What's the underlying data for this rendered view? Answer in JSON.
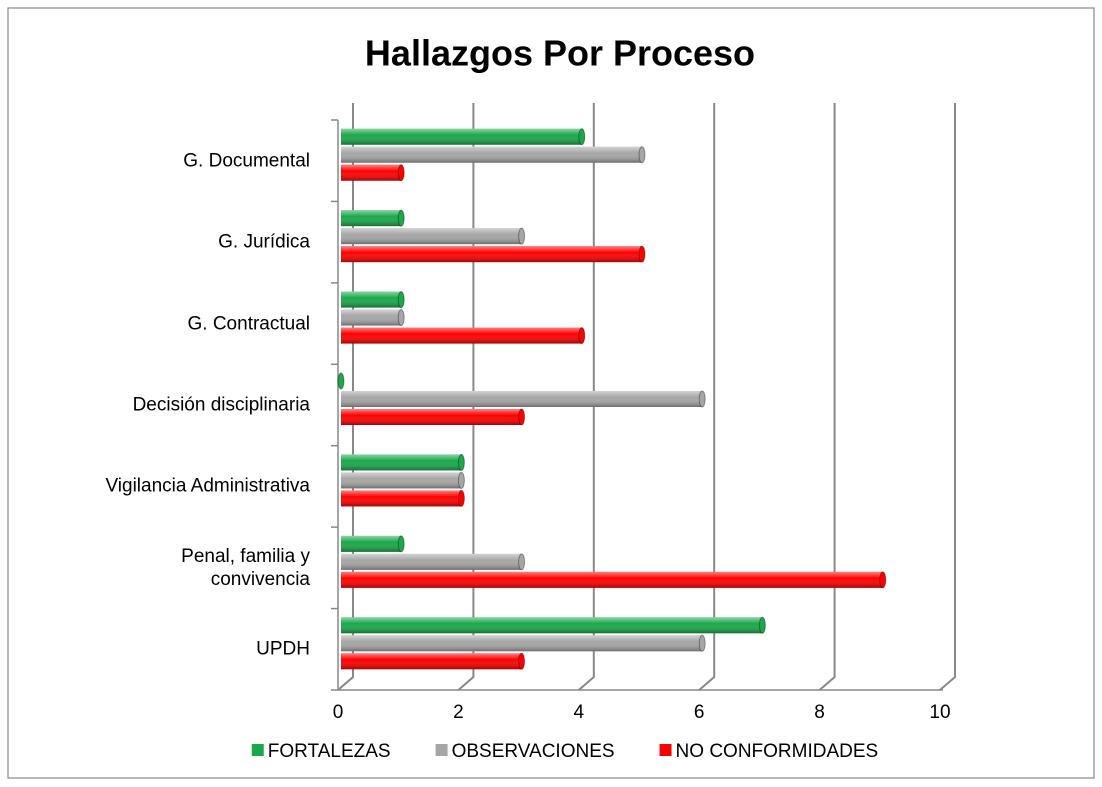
{
  "chart_data": {
    "type": "bar",
    "orientation": "horizontal",
    "title": "Hallazgos Por Proceso",
    "categories": [
      "G. Documental",
      "G. Jurídica",
      "G. Contractual",
      "Decisión disciplinaria",
      "Vigilancia Administrativa",
      "Penal, familia y\nconvivencia",
      "UPDH"
    ],
    "series": [
      {
        "name": "FORTALEZAS",
        "color": "#1aa84a",
        "values": [
          4,
          1,
          1,
          0,
          2,
          1,
          7
        ]
      },
      {
        "name": "OBSERVACIONES",
        "color": "#a6a6a6",
        "values": [
          5,
          3,
          1,
          6,
          2,
          3,
          6
        ]
      },
      {
        "name": "NO CONFORMIDADES",
        "color": "#ff0000",
        "values": [
          1,
          5,
          4,
          3,
          2,
          9,
          3
        ]
      }
    ],
    "xlim": [
      0,
      10
    ],
    "xticks": [
      0,
      2,
      4,
      6,
      8,
      10
    ],
    "grid": true,
    "legend": "bottom"
  }
}
